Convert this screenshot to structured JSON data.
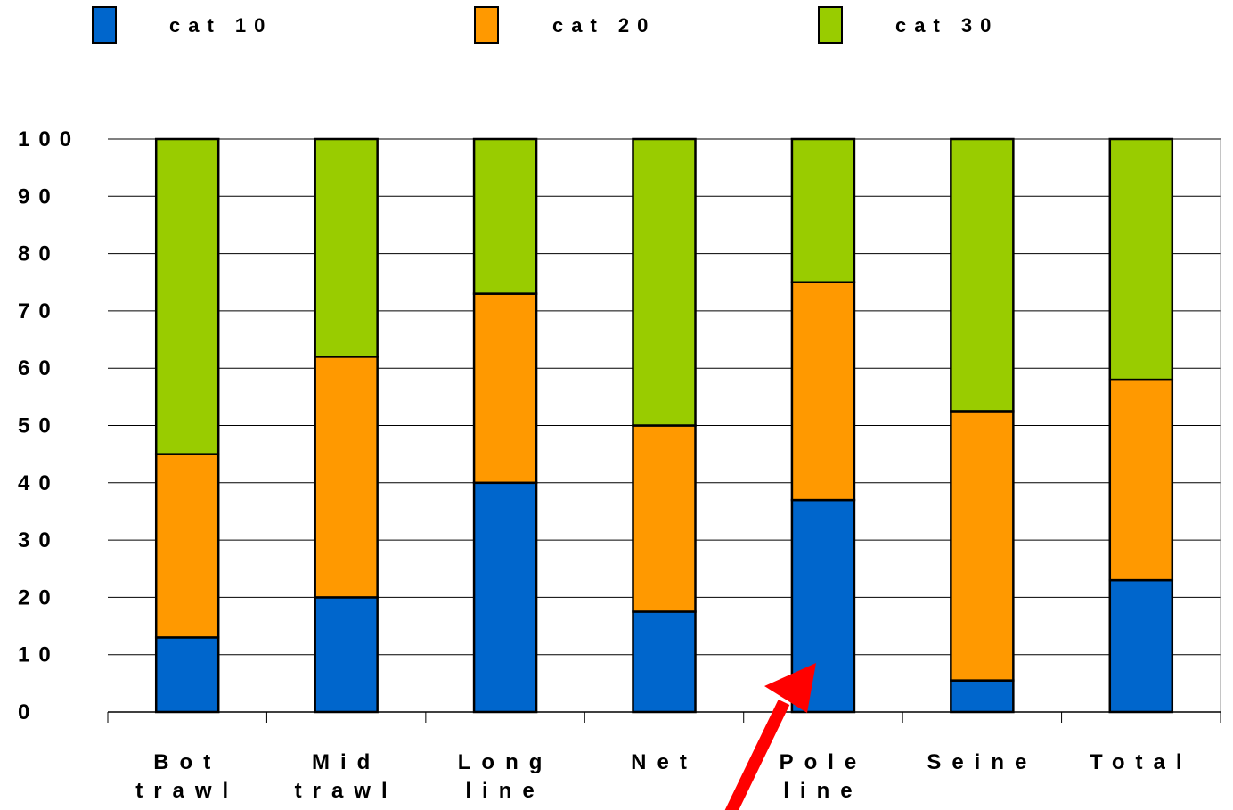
{
  "chart_data": {
    "type": "bar",
    "stacked": true,
    "categories": [
      [
        "Bot",
        "trawl"
      ],
      [
        "Mid",
        "trawl"
      ],
      [
        "Long",
        "line"
      ],
      [
        "Net"
      ],
      [
        "Pole",
        "line"
      ],
      [
        "Seine"
      ],
      [
        "Total"
      ]
    ],
    "series": [
      {
        "name": "cat 10",
        "color": "#0066cc",
        "values": [
          13,
          20,
          40,
          17.5,
          37,
          5.5,
          23
        ]
      },
      {
        "name": "cat 20",
        "color": "#ff9900",
        "values": [
          32,
          42,
          33,
          32.5,
          38,
          47,
          35
        ]
      },
      {
        "name": "cat 30",
        "color": "#99cc00",
        "values": [
          55,
          38,
          27,
          50,
          25,
          47.5,
          42
        ]
      }
    ],
    "yticks": [
      "0",
      "10",
      "20",
      "30",
      "40",
      "50",
      "60",
      "70",
      "80",
      "90",
      "100"
    ],
    "ylim": [
      0,
      100
    ],
    "grid": true,
    "legend_position": "top",
    "annotation": {
      "type": "arrow",
      "color": "#ff0000",
      "target_category": "Pole line"
    }
  }
}
